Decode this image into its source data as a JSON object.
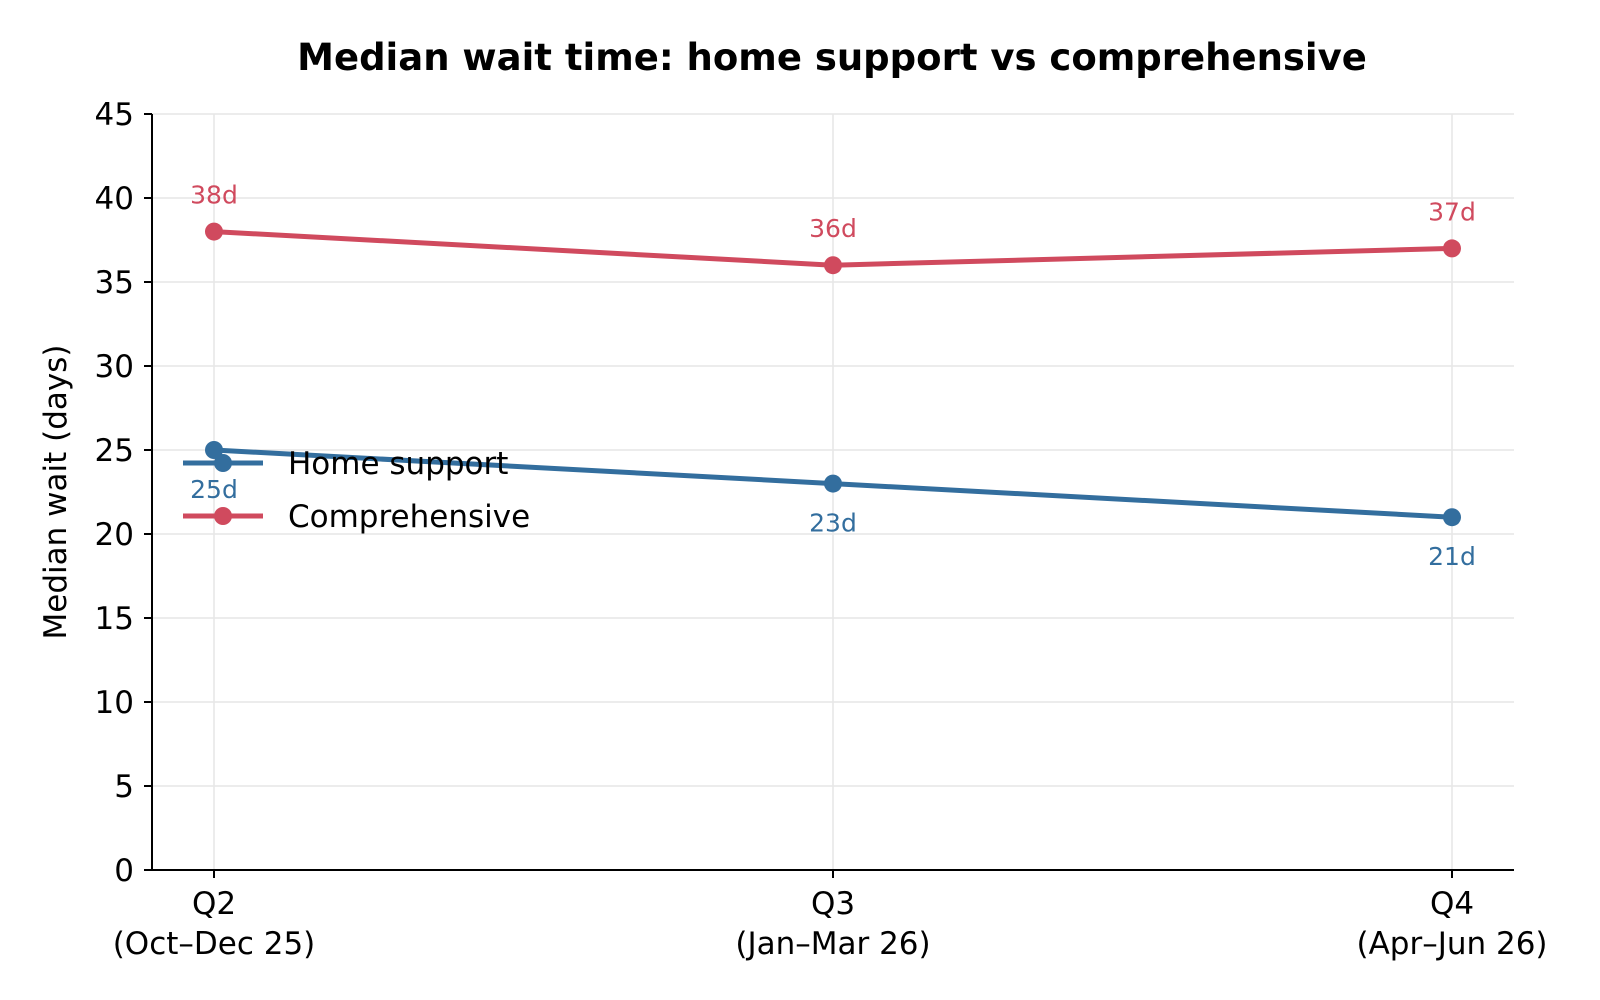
{
  "chart_data": {
    "type": "line",
    "title": "Median wait time: home support vs comprehensive",
    "ylabel": "Median wait (days)",
    "xlabel": "",
    "categories": [
      [
        "Q2",
        "(Oct–Dec 25)"
      ],
      [
        "Q3",
        "(Jan–Mar 26)"
      ],
      [
        "Q4",
        "(Apr–Jun 26)"
      ]
    ],
    "ylim": [
      0,
      45
    ],
    "yticks": [
      0,
      5,
      10,
      15,
      20,
      25,
      30,
      35,
      40,
      45
    ],
    "grid": true,
    "legend_position": "center-left",
    "series": [
      {
        "name": "Home support",
        "color": "#336e9e",
        "values": [
          25,
          23,
          21
        ],
        "labels": [
          "25d",
          "23d",
          "21d"
        ],
        "label_placement": "below"
      },
      {
        "name": "Comprehensive",
        "color": "#d04a5e",
        "values": [
          38,
          36,
          37
        ],
        "labels": [
          "38d",
          "36d",
          "37d"
        ],
        "label_placement": "above"
      }
    ]
  }
}
